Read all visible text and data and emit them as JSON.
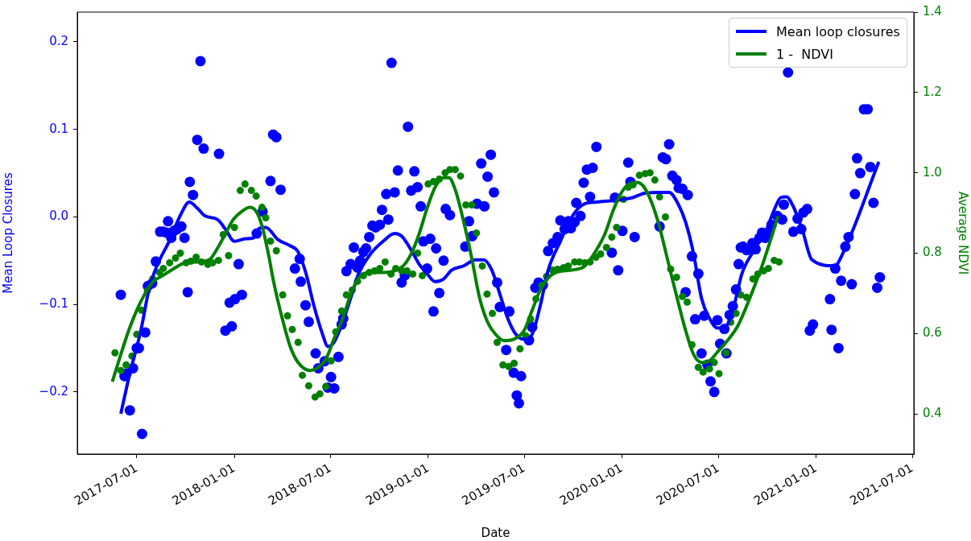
{
  "chart_data": {
    "type": "scatter",
    "xlabel": "Date",
    "ylabel": "Mean Loop Closures",
    "y2label": "Average NDVI",
    "legend": "top right",
    "grid": false,
    "xlim": [
      "2017-03-11",
      "2021-07-04"
    ],
    "xticks": [
      "2017-07-01",
      "2018-01-01",
      "2018-07-01",
      "2019-01-01",
      "2019-07-01",
      "2020-01-01",
      "2020-07-01",
      "2021-01-01",
      "2021-07-01"
    ],
    "ylim": [
      -0.271,
      0.234
    ],
    "yticks": [
      {
        "value": -0.2,
        "label": "−0.2"
      },
      {
        "value": -0.1,
        "label": "−0.1"
      },
      {
        "value": 0,
        "label": "0.0"
      },
      {
        "value": 0.1,
        "label": "0.1"
      },
      {
        "value": 0.2,
        "label": "0.2"
      }
    ],
    "y2lim": [
      0.3,
      1.4
    ],
    "y2ticks": [
      {
        "value": 0.4,
        "label": "0.4"
      },
      {
        "value": 0.6,
        "label": "0.6"
      },
      {
        "value": 0.8,
        "label": "0.8"
      },
      {
        "value": 1,
        "label": "1.0"
      },
      {
        "value": 1.2,
        "label": "1.2"
      },
      {
        "value": 1.4,
        "label": "1.4"
      }
    ],
    "series": [
      {
        "type": "scatter",
        "marker": "circle",
        "color": "#0000ff",
        "axis": "y",
        "x": [
          "2017-06-01",
          "2017-06-08",
          "2017-06-12",
          "2017-06-18",
          "2017-06-24",
          "2017-07-01",
          "2017-07-05",
          "2017-07-11",
          "2017-07-17",
          "2017-07-22",
          "2017-07-30",
          "2017-08-06",
          "2017-08-14",
          "2017-08-20",
          "2017-08-26",
          "2017-08-29",
          "2017-09-04",
          "2017-09-09",
          "2017-09-15",
          "2017-09-23",
          "2017-09-29",
          "2017-10-05",
          "2017-10-09",
          "2017-10-15",
          "2017-10-23",
          "2017-10-29",
          "2017-11-04",
          "2017-12-03",
          "2017-12-15",
          "2017-12-23",
          "2017-12-27",
          "2018-01-02",
          "2018-01-09",
          "2018-01-15",
          "2018-02-12",
          "2018-02-23",
          "2018-03-10",
          "2018-03-15",
          "2018-03-21",
          "2018-03-29",
          "2018-04-25",
          "2018-05-04",
          "2018-05-06",
          "2018-05-15",
          "2018-05-21",
          "2018-06-03",
          "2018-06-08",
          "2018-06-20",
          "2018-06-26",
          "2018-07-02",
          "2018-07-08",
          "2018-07-16",
          "2018-07-22",
          "2018-07-25",
          "2018-07-31",
          "2018-08-08",
          "2018-08-14",
          "2018-08-21",
          "2018-08-26",
          "2018-09-01",
          "2018-09-06",
          "2018-09-12",
          "2018-09-18",
          "2018-09-24",
          "2018-10-02",
          "2018-10-06",
          "2018-10-14",
          "2018-10-18",
          "2018-10-24",
          "2018-10-30",
          "2018-11-05",
          "2018-11-12",
          "2018-11-18",
          "2018-11-24",
          "2018-11-30",
          "2018-12-06",
          "2018-12-12",
          "2018-12-18",
          "2018-12-23",
          "2018-12-30",
          "2019-01-05",
          "2019-01-11",
          "2019-01-16",
          "2019-01-22",
          "2019-01-30",
          "2019-02-03",
          "2019-02-11",
          "2019-03-12",
          "2019-03-19",
          "2019-03-25",
          "2019-04-03",
          "2019-04-11",
          "2019-04-17",
          "2019-04-23",
          "2019-04-29",
          "2019-05-05",
          "2019-05-11",
          "2019-05-16",
          "2019-05-28",
          "2019-06-03",
          "2019-06-11",
          "2019-06-17",
          "2019-06-21",
          "2019-06-25",
          "2019-07-10",
          "2019-07-16",
          "2019-07-22",
          "2019-07-28",
          "2019-08-05",
          "2019-08-15",
          "2019-08-24",
          "2019-09-02",
          "2019-09-07",
          "2019-09-15",
          "2019-09-22",
          "2019-09-27",
          "2019-10-04",
          "2019-10-07",
          "2019-10-15",
          "2019-10-21",
          "2019-10-27",
          "2019-11-02",
          "2019-11-07",
          "2019-11-14",
          "2019-12-13",
          "2019-12-19",
          "2019-12-25",
          "2020-01-02",
          "2020-01-13",
          "2020-01-17",
          "2020-01-25",
          "2020-03-12",
          "2020-03-18",
          "2020-03-24",
          "2020-03-30",
          "2020-04-05",
          "2020-04-13",
          "2020-04-17",
          "2020-04-24",
          "2020-04-30",
          "2020-05-04",
          "2020-05-12",
          "2020-05-18",
          "2020-05-24",
          "2020-05-30",
          "2020-06-04",
          "2020-06-10",
          "2020-06-16",
          "2020-06-23",
          "2020-06-29",
          "2020-07-04",
          "2020-07-12",
          "2020-07-16",
          "2020-07-22",
          "2020-07-28",
          "2020-08-03",
          "2020-08-08",
          "2020-08-12",
          "2020-08-16",
          "2020-08-23",
          "2020-09-03",
          "2020-09-09",
          "2020-09-16",
          "2020-09-21",
          "2020-09-27",
          "2020-10-05",
          "2020-10-09",
          "2020-10-20",
          "2020-10-29",
          "2020-11-01",
          "2020-11-09",
          "2020-11-19",
          "2020-11-27",
          "2020-12-04",
          "2020-12-08",
          "2020-12-15",
          "2020-12-20",
          "2020-12-26",
          "2021-01-27",
          "2021-01-30",
          "2021-02-06",
          "2021-02-12",
          "2021-02-17",
          "2021-02-25",
          "2021-03-03",
          "2021-03-09",
          "2021-03-15",
          "2021-03-19",
          "2021-03-25",
          "2021-04-01",
          "2021-04-08",
          "2021-04-13",
          "2021-04-19",
          "2021-04-26",
          "2021-05-01"
        ],
        "values": [
          -0.089,
          -0.182,
          -0.179,
          -0.221,
          -0.173,
          -0.15,
          -0.15,
          -0.248,
          -0.132,
          -0.079,
          -0.076,
          -0.051,
          -0.017,
          -0.017,
          -0.018,
          -0.005,
          -0.024,
          -0.016,
          -0.014,
          -0.011,
          -0.024,
          -0.086,
          0.04,
          0.025,
          0.088,
          0.178,
          0.078,
          0.072,
          -0.13,
          -0.098,
          -0.125,
          -0.094,
          -0.054,
          -0.089,
          -0.019,
          0.006,
          0.041,
          0.094,
          0.091,
          0.031,
          -0.059,
          -0.048,
          -0.074,
          -0.101,
          -0.12,
          -0.156,
          -0.173,
          -0.165,
          -0.195,
          -0.183,
          -0.196,
          -0.16,
          -0.123,
          -0.116,
          -0.062,
          -0.054,
          -0.035,
          -0.058,
          -0.05,
          -0.04,
          -0.036,
          -0.023,
          -0.01,
          -0.012,
          -0.009,
          0.008,
          0.026,
          -0.003,
          0.176,
          0.028,
          0.053,
          -0.075,
          -0.067,
          0.103,
          0.03,
          0.052,
          0.034,
          0.012,
          -0.028,
          -0.059,
          -0.025,
          -0.108,
          -0.036,
          -0.087,
          -0.05,
          0.009,
          0.002,
          -0.034,
          -0.005,
          -0.022,
          0.015,
          0.061,
          0.012,
          0.046,
          0.071,
          0.028,
          -0.075,
          -0.103,
          -0.152,
          -0.108,
          -0.178,
          -0.204,
          -0.213,
          -0.182,
          -0.141,
          -0.126,
          -0.081,
          -0.075,
          -0.078,
          -0.039,
          -0.03,
          -0.023,
          -0.004,
          -0.014,
          -0.005,
          -0.013,
          -0.006,
          0.016,
          0.001,
          0.039,
          0.054,
          0.023,
          0.056,
          0.08,
          -0.041,
          0.022,
          -0.061,
          -0.016,
          0.062,
          0.04,
          -0.023,
          -0.011,
          0.068,
          0.066,
          0.083,
          0.047,
          0.042,
          0.033,
          0.032,
          -0.086,
          0.025,
          -0.045,
          -0.117,
          -0.065,
          -0.156,
          -0.113,
          -0.169,
          -0.188,
          -0.2,
          -0.118,
          -0.145,
          -0.128,
          -0.156,
          -0.112,
          -0.102,
          -0.083,
          -0.054,
          -0.035,
          -0.034,
          -0.038,
          -0.03,
          -0.037,
          -0.024,
          -0.018,
          -0.024,
          -0.017,
          -0.009,
          0.001,
          -0.003,
          0.014,
          0.165,
          -0.017,
          -0.002,
          -0.014,
          0.005,
          0.009,
          -0.13,
          -0.123,
          -0.094,
          -0.129,
          -0.059,
          -0.15,
          -0.073,
          -0.034,
          -0.023,
          -0.077,
          0.026,
          0.067,
          0.05,
          0.123,
          0.123,
          0.057,
          0.016,
          -0.081,
          -0.069
        ]
      },
      {
        "type": "scatter",
        "marker": "circle",
        "color": "#008000",
        "axis": "y2",
        "x": [
          "2017-05-21",
          "2017-06-01",
          "2017-06-11",
          "2017-06-22",
          "2017-07-01",
          "2017-07-10",
          "2017-07-21",
          "2017-07-31",
          "2017-08-13",
          "2017-08-20",
          "2017-09-01",
          "2017-09-12",
          "2017-09-21",
          "2017-10-02",
          "2017-10-11",
          "2017-10-21",
          "2017-10-31",
          "2017-11-12",
          "2017-11-21",
          "2017-12-02",
          "2017-12-11",
          "2017-12-21",
          "2018-01-01",
          "2018-01-12",
          "2018-01-21",
          "2018-02-02",
          "2018-02-11",
          "2018-02-22",
          "2018-03-01",
          "2018-03-10",
          "2018-03-21",
          "2018-04-02",
          "2018-04-11",
          "2018-04-20",
          "2018-05-01",
          "2018-05-09",
          "2018-05-21",
          "2018-06-02",
          "2018-06-11",
          "2018-06-22",
          "2018-07-02",
          "2018-07-11",
          "2018-07-22",
          "2018-07-31",
          "2018-08-11",
          "2018-08-21",
          "2018-09-01",
          "2018-09-12",
          "2018-09-22",
          "2018-10-02",
          "2018-10-12",
          "2018-10-23",
          "2018-11-01",
          "2018-11-12",
          "2018-11-22",
          "2018-12-03",
          "2018-12-12",
          "2018-12-21",
          "2019-01-01",
          "2019-01-11",
          "2019-01-22",
          "2019-02-02",
          "2019-02-11",
          "2019-02-21",
          "2019-03-03",
          "2019-03-13",
          "2019-03-24",
          "2019-04-02",
          "2019-04-13",
          "2019-04-22",
          "2019-05-02",
          "2019-05-11",
          "2019-05-22",
          "2019-06-02",
          "2019-06-12",
          "2019-06-23",
          "2019-07-04",
          "2019-07-13",
          "2019-07-23",
          "2019-08-03",
          "2019-08-12",
          "2019-08-23",
          "2019-09-02",
          "2019-09-13",
          "2019-09-22",
          "2019-10-04",
          "2019-10-13",
          "2019-10-23",
          "2019-11-02",
          "2019-11-13",
          "2019-11-22",
          "2019-12-03",
          "2019-12-13",
          "2019-12-22",
          "2020-01-04",
          "2020-01-13",
          "2020-01-22",
          "2020-02-03",
          "2020-02-14",
          "2020-02-23",
          "2020-03-03",
          "2020-03-12",
          "2020-03-23",
          "2020-04-02",
          "2020-04-13",
          "2020-04-24",
          "2020-05-03",
          "2020-05-12",
          "2020-05-24",
          "2020-06-02",
          "2020-06-14",
          "2020-06-23",
          "2020-07-02",
          "2020-07-15",
          "2020-07-24",
          "2020-08-03",
          "2020-08-12",
          "2020-08-23",
          "2020-09-04",
          "2020-09-13",
          "2020-09-24",
          "2020-10-03",
          "2020-10-14",
          "2020-10-23"
        ],
        "values": [
          0.552,
          0.508,
          0.522,
          0.544,
          0.598,
          0.658,
          0.706,
          0.736,
          0.752,
          0.762,
          0.776,
          0.788,
          0.8,
          0.776,
          0.78,
          0.79,
          0.778,
          0.772,
          0.776,
          0.782,
          0.846,
          0.794,
          0.864,
          0.956,
          0.972,
          0.956,
          0.942,
          0.914,
          0.888,
          0.83,
          0.806,
          0.696,
          0.644,
          0.61,
          0.578,
          0.496,
          0.47,
          0.442,
          0.45,
          0.468,
          0.532,
          0.604,
          0.656,
          0.696,
          0.708,
          0.73,
          0.744,
          0.752,
          0.756,
          0.762,
          0.778,
          0.748,
          0.762,
          0.756,
          0.756,
          0.748,
          0.8,
          0.744,
          0.972,
          0.978,
          0.984,
          1.0,
          1.008,
          1.008,
          0.992,
          0.92,
          0.92,
          0.85,
          0.768,
          0.698,
          0.65,
          0.578,
          0.522,
          0.518,
          0.526,
          0.562,
          0.594,
          0.636,
          0.686,
          0.72,
          0.742,
          0.758,
          0.76,
          0.764,
          0.768,
          0.778,
          0.778,
          0.776,
          0.778,
          0.79,
          0.798,
          0.814,
          0.84,
          0.864,
          0.934,
          0.964,
          0.97,
          0.994,
          0.998,
          1.0,
          0.982,
          0.94,
          0.89,
          0.76,
          0.74,
          0.692,
          0.678,
          0.572,
          0.516,
          0.504,
          0.512,
          0.528,
          0.5,
          0.552,
          0.628,
          0.65,
          0.696,
          0.69,
          0.736,
          0.748,
          0.756,
          0.762,
          0.782,
          0.778
        ]
      },
      {
        "type": "line",
        "marker": "none",
        "name": "Mean loop closures",
        "color": "#0000ff",
        "axis": "y",
        "x": [
          "2017-06-01",
          "2017-06-16",
          "2017-07-09",
          "2017-07-24",
          "2017-08-08",
          "2017-08-31",
          "2017-09-23",
          "2017-10-08",
          "2017-10-23",
          "2017-11-07",
          "2017-11-30",
          "2017-12-15",
          "2018-01-01",
          "2018-01-22",
          "2018-02-06",
          "2018-02-17",
          "2018-03-01",
          "2018-03-24",
          "2018-04-16",
          "2018-05-01",
          "2018-05-16",
          "2018-05-31",
          "2018-06-16",
          "2018-06-26",
          "2018-07-08",
          "2018-07-24",
          "2018-08-08",
          "2018-08-23",
          "2018-09-15",
          "2018-10-08",
          "2018-10-30",
          "2018-11-12",
          "2018-11-30",
          "2018-12-15",
          "2018-12-30",
          "2019-01-14",
          "2019-01-30",
          "2019-02-14",
          "2019-03-09",
          "2019-03-31",
          "2019-04-16",
          "2019-05-01",
          "2019-05-16",
          "2019-05-31",
          "2019-06-15",
          "2019-07-01",
          "2019-07-16",
          "2019-07-31",
          "2019-08-15",
          "2019-09-07",
          "2019-10-03",
          "2019-10-23",
          "2019-11-14",
          "2019-12-22",
          "2020-01-21",
          "2020-02-13",
          "2020-03-15",
          "2020-03-30",
          "2020-04-14",
          "2020-04-30",
          "2020-05-15",
          "2020-05-30",
          "2020-06-14",
          "2020-06-29",
          "2020-07-15",
          "2020-07-30",
          "2020-08-14",
          "2020-09-06",
          "2020-09-29",
          "2020-10-14",
          "2020-10-26",
          "2020-11-06",
          "2020-11-18",
          "2020-12-06",
          "2020-12-24",
          "2021-02-05",
          "2021-02-20",
          "2021-04-29"
        ],
        "values": [
          -0.225,
          -0.184,
          -0.129,
          -0.083,
          -0.056,
          -0.028,
          0.004,
          0.017,
          0.01,
          0.001,
          -0.003,
          -0.014,
          -0.028,
          -0.025,
          -0.024,
          -0.013,
          -0.012,
          -0.026,
          -0.033,
          -0.04,
          -0.065,
          -0.102,
          -0.134,
          -0.148,
          -0.143,
          -0.12,
          -0.093,
          -0.065,
          -0.042,
          -0.028,
          -0.019,
          -0.022,
          -0.038,
          -0.054,
          -0.065,
          -0.074,
          -0.071,
          -0.061,
          -0.056,
          -0.049,
          -0.049,
          -0.061,
          -0.088,
          -0.116,
          -0.134,
          -0.14,
          -0.134,
          -0.102,
          -0.061,
          -0.028,
          0.004,
          0.015,
          0.017,
          0.019,
          0.022,
          0.027,
          0.028,
          0.028,
          0.017,
          -0.006,
          -0.042,
          -0.093,
          -0.116,
          -0.127,
          -0.125,
          -0.102,
          -0.065,
          -0.038,
          -0.015,
          0.008,
          0.022,
          0.023,
          0.013,
          -0.015,
          -0.049,
          -0.056,
          -0.042,
          0.063
        ]
      },
      {
        "type": "line",
        "marker": "none",
        "name": "1 -  NDVI",
        "color": "#008000",
        "axis": "y2",
        "x": [
          "2017-05-16",
          "2017-06-01",
          "2017-06-16",
          "2017-07-01",
          "2017-07-16",
          "2017-07-31",
          "2017-08-16",
          "2017-09-07",
          "2017-09-30",
          "2017-10-23",
          "2017-11-15",
          "2017-11-30",
          "2017-12-15",
          "2017-12-30",
          "2018-01-15",
          "2018-01-30",
          "2018-02-11",
          "2018-02-22",
          "2018-03-06",
          "2018-03-16",
          "2018-04-01",
          "2018-04-16",
          "2018-05-01",
          "2018-05-24",
          "2018-06-08",
          "2018-06-23",
          "2018-07-08",
          "2018-07-24",
          "2018-08-08",
          "2018-08-23",
          "2018-09-15",
          "2018-10-08",
          "2018-10-30",
          "2018-11-15",
          "2018-11-30",
          "2018-12-15",
          "2018-12-30",
          "2019-01-14",
          "2019-01-30",
          "2019-02-09",
          "2019-02-21",
          "2019-03-09",
          "2019-03-24",
          "2019-04-08",
          "2019-04-23",
          "2019-05-08",
          "2019-05-24",
          "2019-06-15",
          "2019-07-01",
          "2019-07-16",
          "2019-07-31",
          "2019-08-15",
          "2019-08-30",
          "2019-09-30",
          "2019-10-23",
          "2019-11-14",
          "2019-11-30",
          "2019-12-15",
          "2019-12-30",
          "2020-01-14",
          "2020-01-29",
          "2020-02-14",
          "2020-03-07",
          "2020-03-30",
          "2020-04-14",
          "2020-04-30",
          "2020-05-15",
          "2020-05-30",
          "2020-06-14",
          "2020-06-29",
          "2020-07-15",
          "2020-08-06",
          "2020-08-29",
          "2020-09-21",
          "2020-10-06",
          "2020-10-21"
        ],
        "values": [
          0.48,
          0.548,
          0.608,
          0.658,
          0.698,
          0.728,
          0.742,
          0.76,
          0.776,
          0.778,
          0.784,
          0.812,
          0.848,
          0.884,
          0.904,
          0.914,
          0.904,
          0.868,
          0.798,
          0.728,
          0.638,
          0.568,
          0.528,
          0.508,
          0.516,
          0.538,
          0.588,
          0.638,
          0.696,
          0.738,
          0.752,
          0.752,
          0.756,
          0.768,
          0.798,
          0.848,
          0.912,
          0.964,
          0.988,
          0.988,
          0.958,
          0.878,
          0.788,
          0.688,
          0.628,
          0.598,
          0.582,
          0.588,
          0.608,
          0.658,
          0.708,
          0.738,
          0.752,
          0.758,
          0.768,
          0.808,
          0.848,
          0.904,
          0.948,
          0.972,
          0.976,
          0.96,
          0.888,
          0.768,
          0.688,
          0.608,
          0.548,
          0.528,
          0.532,
          0.554,
          0.578,
          0.618,
          0.688,
          0.768,
          0.828,
          0.892
        ]
      }
    ]
  }
}
